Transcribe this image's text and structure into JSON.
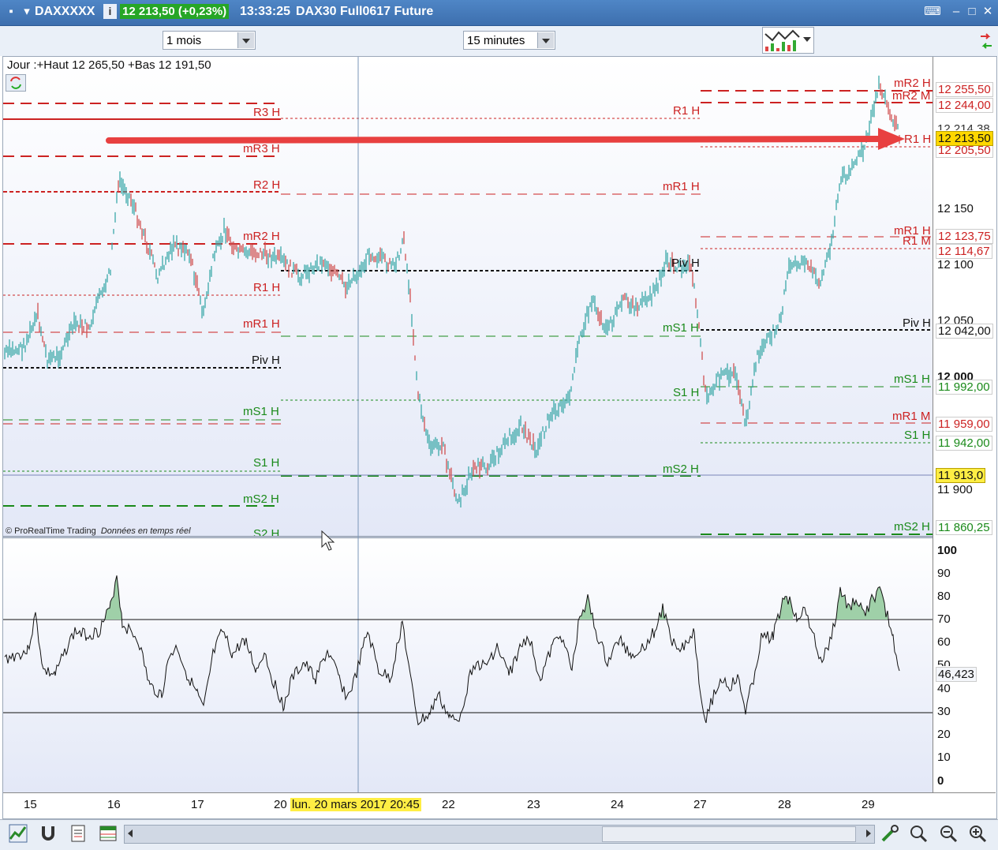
{
  "window": {
    "symbol": "DAXXXXX",
    "info_icon": "i",
    "price": "12 213,50 (+0,23%)",
    "time": "13:33:25",
    "description": "DAX30 Full0617 Future"
  },
  "toolbar": {
    "period": "1 mois",
    "interval": "15 minutes"
  },
  "chart": {
    "header": "Jour :+Haut 12 265,50 +Bas 12 191,50",
    "copyright": "© ProRealTime Trading",
    "realtime": "Données en temps réel",
    "crosshair_date": "lun. 20 mars 2017 20:45",
    "level_labels_left": {
      "r3": "R3 H",
      "mr3": "mR3 H",
      "r2": "R2 H",
      "mr2": "mR2 H",
      "r1": "R1 H",
      "mr1": "mR1 H",
      "piv": "Piv H",
      "ms1": "mS1 H",
      "s1": "S1 H",
      "ms2": "mS2 H",
      "s2": "S2 H"
    },
    "level_labels_mid": {
      "r1": "R1 H",
      "mr1": "mR1 H",
      "piv": "Piv H",
      "ms1": "mS1 H",
      "s1": "S1 H",
      "ms2": "mS2 H"
    },
    "level_labels_right": {
      "mr2": "mR2 H",
      "mr2m": "mR2 M",
      "r1": "R1 H",
      "mr1": "mR1 H",
      "r1m": "R1 M",
      "piv": "Piv H",
      "ms1": "mS1 H",
      "mr1m": "mR1 M",
      "s1": "S1 H",
      "ms2": "mS2 H"
    },
    "price_ticks": [
      "12 150",
      "12 100",
      "12 050",
      "12 000",
      "11 900"
    ],
    "price_boxes": {
      "p1": "12 255,50",
      "p2": "12 244,00",
      "p3": "12 214,38",
      "p4": "12 213,50",
      "p5": "12 205,50",
      "p6": "12 123,75",
      "p7": "12 114,67",
      "p8": "12 042,00",
      "p9": "11 992,00",
      "p10": "11 959,00",
      "p11": "11 942,00",
      "p12": "11 913,0",
      "p13": "11 860,25"
    },
    "days": [
      "15",
      "16",
      "17",
      "20",
      "22",
      "23",
      "24",
      "27",
      "28",
      "29"
    ],
    "colors": {
      "up": "#3aa8a8",
      "down": "#d05050",
      "resistance": "#cc2222",
      "support": "#1a8a1a",
      "arrow": "#e84040",
      "current_price": "#ffd700"
    }
  },
  "rsi": {
    "ticks": [
      "100",
      "90",
      "80",
      "70",
      "60",
      "50",
      "40",
      "30",
      "20",
      "10",
      "0"
    ],
    "value": "46,423",
    "levels": [
      70,
      30
    ]
  }
}
